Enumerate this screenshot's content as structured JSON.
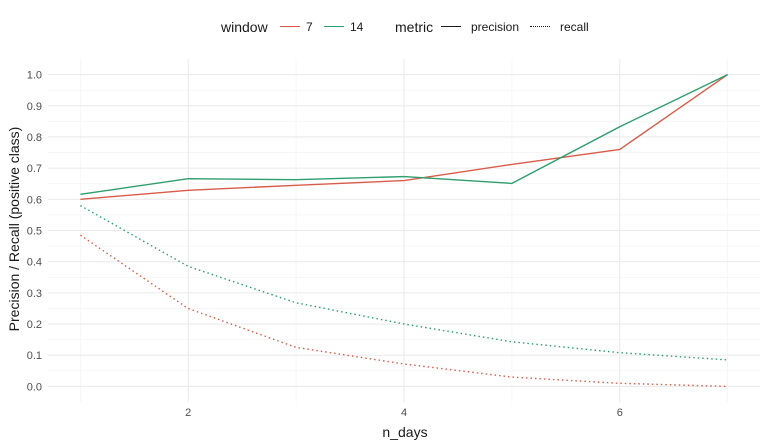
{
  "chart_data": {
    "type": "line",
    "xlabel": "n_days",
    "ylabel": "Precision / Recall (positive class)",
    "xlim": [
      0.7,
      7.3
    ],
    "ylim": [
      -0.05,
      1.05
    ],
    "x_ticks": [
      2,
      4,
      6
    ],
    "y_ticks": [
      0.0,
      0.1,
      0.2,
      0.3,
      0.4,
      0.5,
      0.6,
      0.7,
      0.8,
      0.9,
      1.0
    ],
    "grid": true,
    "legend_position": "top",
    "legend": {
      "window_title": "window",
      "window_entries": [
        {
          "label": "7",
          "color": "#d95c4a"
        },
        {
          "label": "14",
          "color": "#2e9e6e"
        }
      ],
      "metric_title": "metric",
      "metric_entries": [
        {
          "label": "precision",
          "linestyle": "solid"
        },
        {
          "label": "recall",
          "linestyle": "dotted"
        }
      ]
    },
    "x": [
      1,
      2,
      3,
      4,
      5,
      6,
      7
    ],
    "series": [
      {
        "window": "7",
        "metric": "precision",
        "color": "#d95c4a",
        "linestyle": "solid",
        "values": [
          0.6,
          0.629,
          0.645,
          0.66,
          0.712,
          0.76,
          1.0
        ]
      },
      {
        "window": "14",
        "metric": "precision",
        "color": "#2e9e6e",
        "linestyle": "solid",
        "values": [
          0.616,
          0.666,
          0.663,
          0.673,
          0.651,
          0.833,
          1.0
        ]
      },
      {
        "window": "7",
        "metric": "recall",
        "color": "#d95c4a",
        "linestyle": "dotted",
        "values": [
          0.485,
          0.25,
          0.125,
          0.072,
          0.03,
          0.01,
          0.0
        ]
      },
      {
        "window": "14",
        "metric": "recall",
        "color": "#2e9e6e",
        "linestyle": "dotted",
        "values": [
          0.58,
          0.385,
          0.268,
          0.2,
          0.143,
          0.108,
          0.085
        ]
      }
    ]
  }
}
